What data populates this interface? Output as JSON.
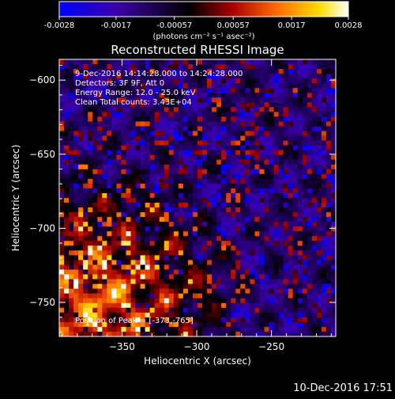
{
  "colorbar": {
    "tick_labels": [
      "-0.0028",
      "-0.0017",
      "-0.00057",
      "0.00057",
      "0.0017",
      "0.0028"
    ],
    "tick_values": [
      -0.0028,
      -0.0017,
      -0.00057,
      0.00057,
      0.0017,
      0.0028
    ],
    "range": [
      -0.0028,
      0.0028
    ],
    "units_label": "(photons cm⁻² s⁻¹ asec⁻²)",
    "colors": [
      "#0000ff",
      "#3a00a8",
      "#000000",
      "#aa0000",
      "#ff6a00",
      "#ffdc00",
      "#ffffff"
    ]
  },
  "chart_data": {
    "type": "heatmap",
    "title": "Reconstructed RHESSI Image",
    "xlabel": "Heliocentric X (arcsec)",
    "ylabel": "Heliocentric Y (arcsec)",
    "xlim": [
      -392,
      -207
    ],
    "ylim": [
      -773,
      -586
    ],
    "x_ticks": [
      -350,
      -300,
      -250
    ],
    "y_ticks": [
      -600,
      -650,
      -700,
      -750
    ],
    "x_tick_labels": [
      "−350",
      "−300",
      "−250"
    ],
    "y_tick_labels": [
      "−600",
      "−650",
      "−700",
      "−750"
    ],
    "peak_marker": {
      "x": -373,
      "y": -765
    },
    "annotations": [
      "9-Dec-2016 14:14:28.000 to 14:24:28.000",
      "Detectors: 3F 9F, Att 0",
      "Energy Range: 12.0 - 25.0 keV",
      "Clean     Total counts: 3.43E+04"
    ],
    "peak_label": "Position of Peak = [-373,-765]"
  },
  "timestamp": "10-Dec-2016 17:51"
}
